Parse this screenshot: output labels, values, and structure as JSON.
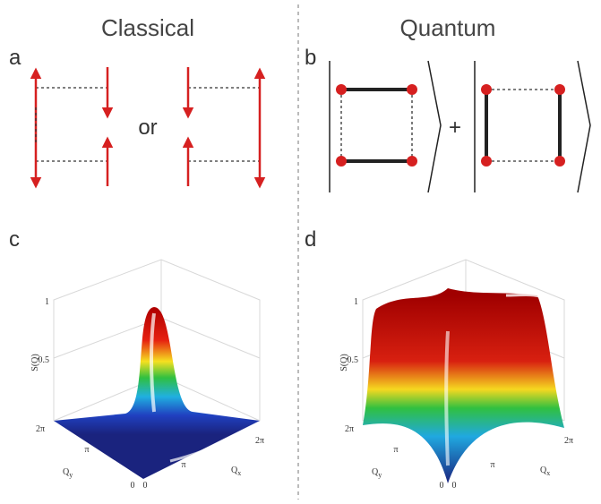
{
  "titles": {
    "classical": "Classical",
    "quantum": "Quantum"
  },
  "panels": {
    "a": {
      "label": "a",
      "connector": "or"
    },
    "b": {
      "label": "b",
      "connector": "+"
    },
    "c": {
      "label": "c",
      "z_label": "S(Q)",
      "z_ticks": [
        "1",
        "0.5"
      ],
      "qy_ticks": [
        "2π",
        "π",
        "0"
      ],
      "qx_ticks": [
        "0",
        "π",
        "2π"
      ],
      "qy_label": {
        "text": "Q",
        "sub": "y"
      },
      "qx_label": {
        "text": "Q",
        "sub": "x"
      }
    },
    "d": {
      "label": "d",
      "z_label": "S(Q)",
      "z_ticks": [
        "1",
        "0.5"
      ],
      "qy_ticks": [
        "2π",
        "π",
        "0"
      ],
      "qx_ticks": [
        "0",
        "π",
        "2π"
      ],
      "qy_label": {
        "text": "Q",
        "sub": "y"
      },
      "qx_label": {
        "text": "Q",
        "sub": "x"
      }
    }
  }
}
